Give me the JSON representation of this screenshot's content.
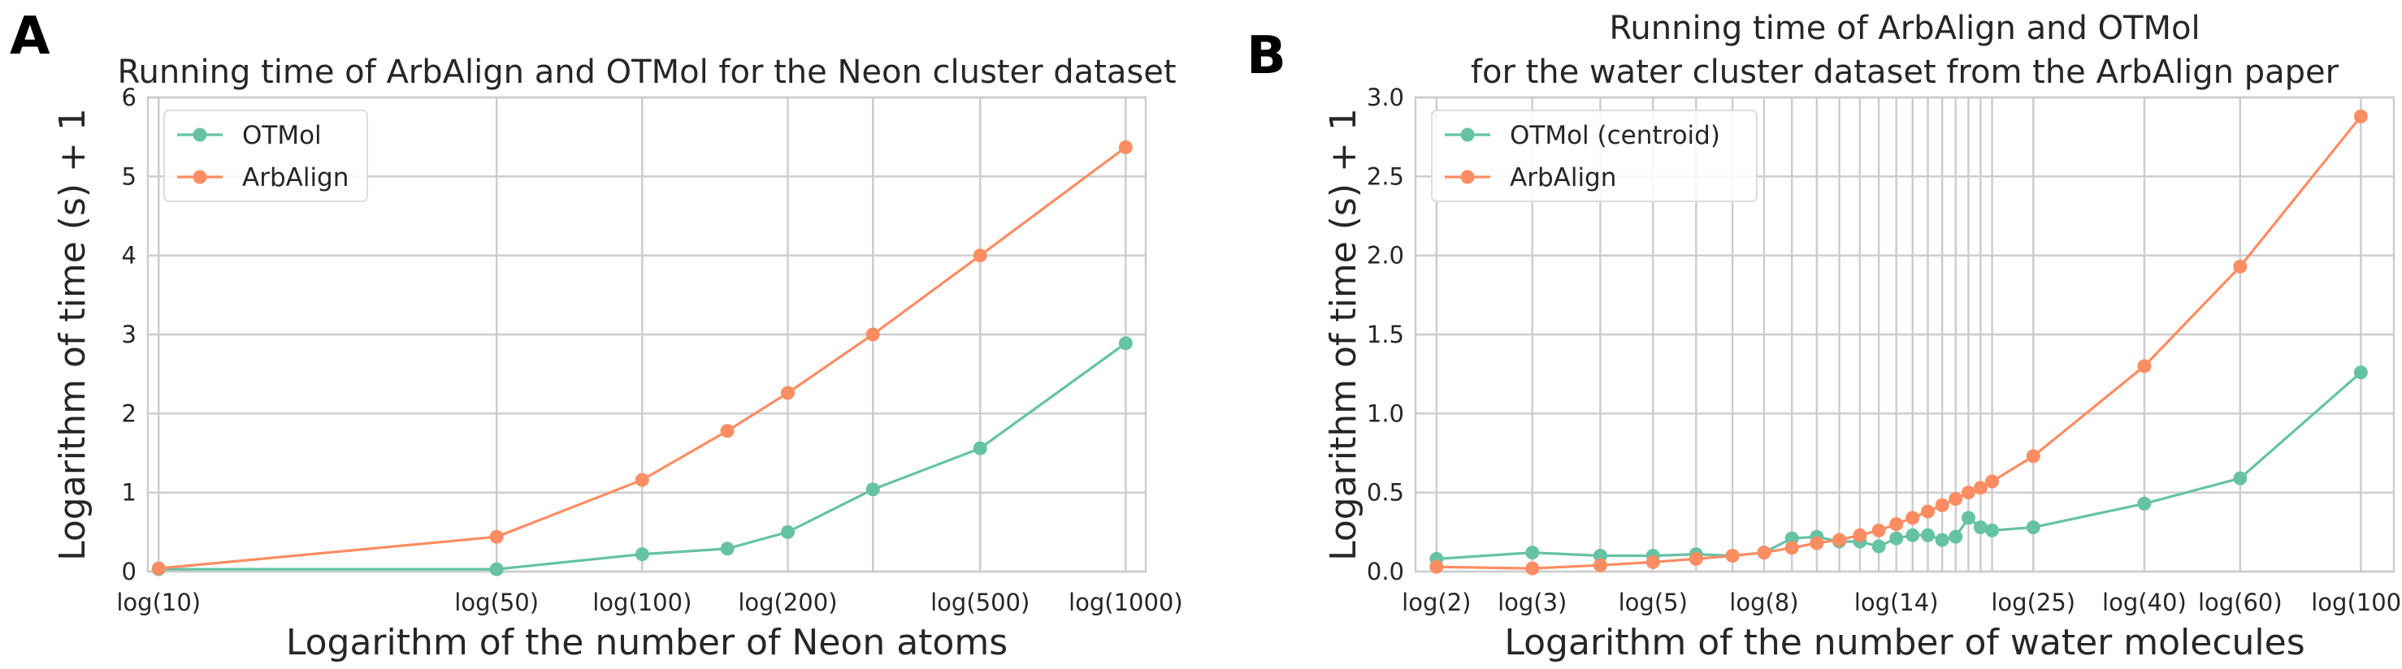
{
  "colors": {
    "otmol": "#66c2a5",
    "arbalign": "#fc8d62",
    "grid": "#cccccc",
    "text": "#262626"
  },
  "chart_data": [
    {
      "panel_label": "A",
      "type": "line",
      "title": "Running time of ArbAlign and OTMol for the Neon cluster dataset",
      "xlabel": "Logarithm of the number of Neon atoms",
      "ylabel": "Logarithm of time (s) + 1",
      "xscale": "log",
      "xlim": [
        9.5,
        1100
      ],
      "ylim": [
        0,
        6
      ],
      "yticks": [
        0,
        1,
        2,
        3,
        4,
        5,
        6
      ],
      "ytick_labels": [
        "0",
        "1",
        "2",
        "3",
        "4",
        "5",
        "6"
      ],
      "xgrid": [
        10,
        50,
        100,
        200,
        300,
        500,
        1000
      ],
      "xtick_positions": [
        10,
        50,
        100,
        200,
        500,
        1000
      ],
      "xtick_labels": [
        "log(10)",
        "log(50)",
        "log(100)",
        "log(200)",
        "log(500)",
        "log(1000)"
      ],
      "legend_position": "top-left",
      "series": [
        {
          "name": "OTMol",
          "color_key": "otmol",
          "x": [
            10,
            50,
            100,
            150,
            200,
            300,
            500,
            1000
          ],
          "y": [
            0.03,
            0.03,
            0.22,
            0.29,
            0.5,
            1.04,
            1.56,
            2.89
          ]
        },
        {
          "name": "ArbAlign",
          "color_key": "arbalign",
          "x": [
            10,
            50,
            100,
            150,
            200,
            300,
            500,
            1000
          ],
          "y": [
            0.04,
            0.44,
            1.16,
            1.78,
            2.26,
            3.0,
            4.0,
            5.37
          ]
        }
      ]
    },
    {
      "panel_label": "B",
      "type": "line",
      "title": "Running time of ArbAlign and OTMol\nfor the water cluster dataset from the ArbAlign paper",
      "xlabel": "Logarithm of the number of water molecules",
      "ylabel": "Logarithm of time (s) + 1",
      "xscale": "log",
      "xlim": [
        1.83,
        115
      ],
      "ylim": [
        0,
        3.0
      ],
      "yticks": [
        0,
        0.5,
        1.0,
        1.5,
        2.0,
        2.5,
        3.0
      ],
      "ytick_labels": [
        "0.0",
        "0.5",
        "1.0",
        "1.5",
        "2.0",
        "2.5",
        "3.0"
      ],
      "xgrid": [
        2,
        3,
        4,
        5,
        6,
        7,
        8,
        9,
        10,
        11,
        12,
        13,
        14,
        15,
        16,
        17,
        18,
        19,
        20,
        21,
        25,
        40,
        60,
        100
      ],
      "xtick_positions": [
        2,
        3,
        5,
        8,
        14,
        25,
        40,
        60,
        100
      ],
      "xtick_labels": [
        "log(2)",
        "log(3)",
        "log(5)",
        "log(8)",
        "log(14)",
        "log(25)",
        "log(40)",
        "log(60)",
        "log(100)"
      ],
      "legend_position": "top-left",
      "series": [
        {
          "name": "OTMol (centroid)",
          "color_key": "otmol",
          "x": [
            2,
            3,
            4,
            5,
            6,
            7,
            8,
            9,
            10,
            11,
            12,
            13,
            14,
            15,
            16,
            17,
            18,
            19,
            20,
            21,
            25,
            40,
            60,
            100
          ],
          "y": [
            0.08,
            0.12,
            0.1,
            0.1,
            0.11,
            0.1,
            0.12,
            0.21,
            0.22,
            0.19,
            0.19,
            0.16,
            0.21,
            0.23,
            0.23,
            0.2,
            0.22,
            0.34,
            0.28,
            0.26,
            0.28,
            0.43,
            0.59,
            1.26
          ]
        },
        {
          "name": "ArbAlign",
          "color_key": "arbalign",
          "x": [
            2,
            3,
            4,
            5,
            6,
            7,
            8,
            9,
            10,
            11,
            12,
            13,
            14,
            15,
            16,
            17,
            18,
            19,
            20,
            21,
            25,
            40,
            60,
            100
          ],
          "y": [
            0.03,
            0.02,
            0.04,
            0.06,
            0.08,
            0.1,
            0.12,
            0.15,
            0.18,
            0.2,
            0.23,
            0.26,
            0.3,
            0.34,
            0.38,
            0.42,
            0.46,
            0.5,
            0.53,
            0.57,
            0.73,
            1.3,
            1.93,
            2.88
          ]
        }
      ]
    }
  ]
}
